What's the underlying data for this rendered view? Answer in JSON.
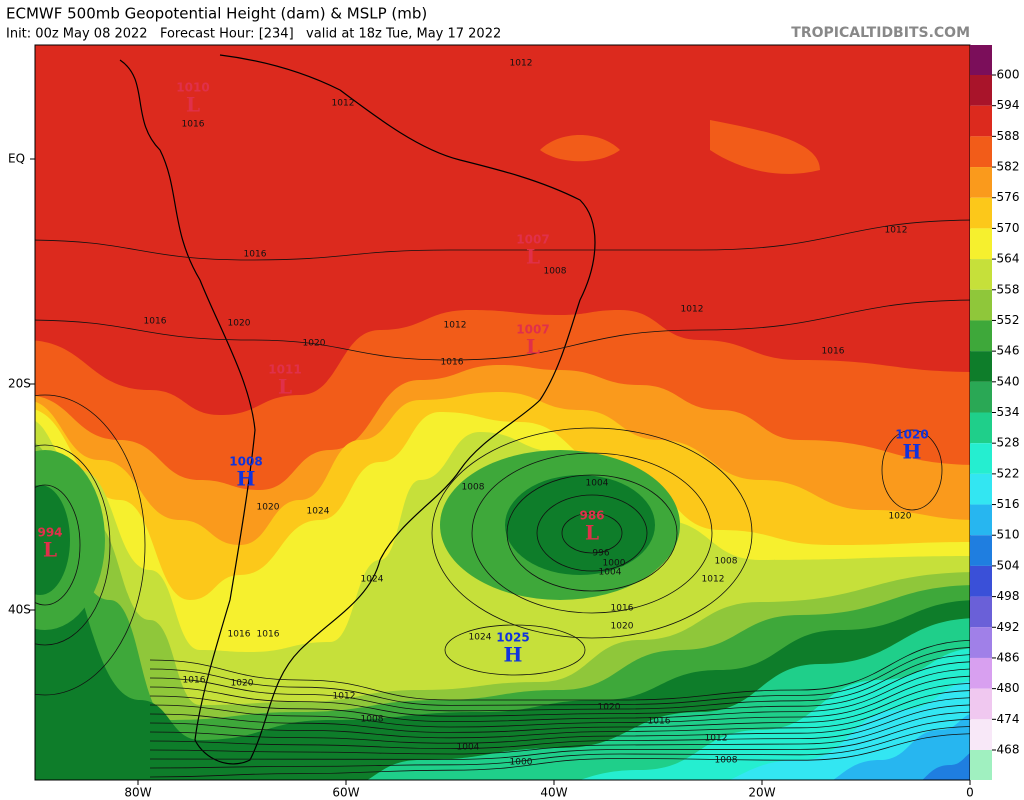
{
  "header": {
    "title": "ECMWF 500mb Geopotential Height (dam) & MSLP (mb)",
    "subtitle": "Init: 00z May 08 2022   Forecast Hour: [234]   valid at 18z Tue, May 17 2022",
    "brand": "TROPICALTIDBITS.COM"
  },
  "colorbar": {
    "ticks": [
      "600",
      "594",
      "588",
      "582",
      "576",
      "570",
      "564",
      "558",
      "552",
      "546",
      "540",
      "534",
      "528",
      "522",
      "516",
      "510",
      "504",
      "498",
      "492",
      "486",
      "480",
      "474",
      "468"
    ],
    "colors": [
      "#7b0e5a",
      "#a9142a",
      "#dc2a1e",
      "#f25c19",
      "#fa9a1c",
      "#fcc81a",
      "#f6f02e",
      "#c6e03a",
      "#8fc73a",
      "#3ea83a",
      "#0e7d2a",
      "#2aa855",
      "#1fcf8a",
      "#25eed0",
      "#33e6f2",
      "#27b6f0",
      "#1f7ee0",
      "#3a50d8",
      "#6a60d8",
      "#a080e8",
      "#d8a0f0",
      "#f0c8f0",
      "#f8e8f8",
      "#a0f0c0"
    ]
  },
  "axes": {
    "y_labels": [
      "EQ",
      "20S",
      "40S"
    ],
    "x_labels": [
      "80W",
      "60W",
      "40W",
      "20W",
      "0"
    ]
  },
  "centers": [
    {
      "value": "1010",
      "type": "L"
    },
    {
      "value": "1007",
      "type": "L"
    },
    {
      "value": "1007",
      "type": "L"
    },
    {
      "value": "1011",
      "type": "L"
    },
    {
      "value": "1008",
      "type": "H"
    },
    {
      "value": "994",
      "type": "L"
    },
    {
      "value": "986",
      "type": "L"
    },
    {
      "value": "1025",
      "type": "H"
    },
    {
      "value": "1020",
      "type": "H"
    }
  ],
  "contour_labels": [
    "1012",
    "1012",
    "1016",
    "1016",
    "1016",
    "1008",
    "1012",
    "1016",
    "1020",
    "1020",
    "1012",
    "1016",
    "1012",
    "1020",
    "1004",
    "1008",
    "1024",
    "1020",
    "1024",
    "996",
    "1000",
    "1004",
    "1008",
    "1012",
    "1016",
    "1020",
    "1024",
    "1016",
    "1016",
    "1016",
    "1020",
    "1012",
    "1008",
    "1020",
    "1016",
    "1012",
    "1004",
    "1000",
    "1008"
  ]
}
